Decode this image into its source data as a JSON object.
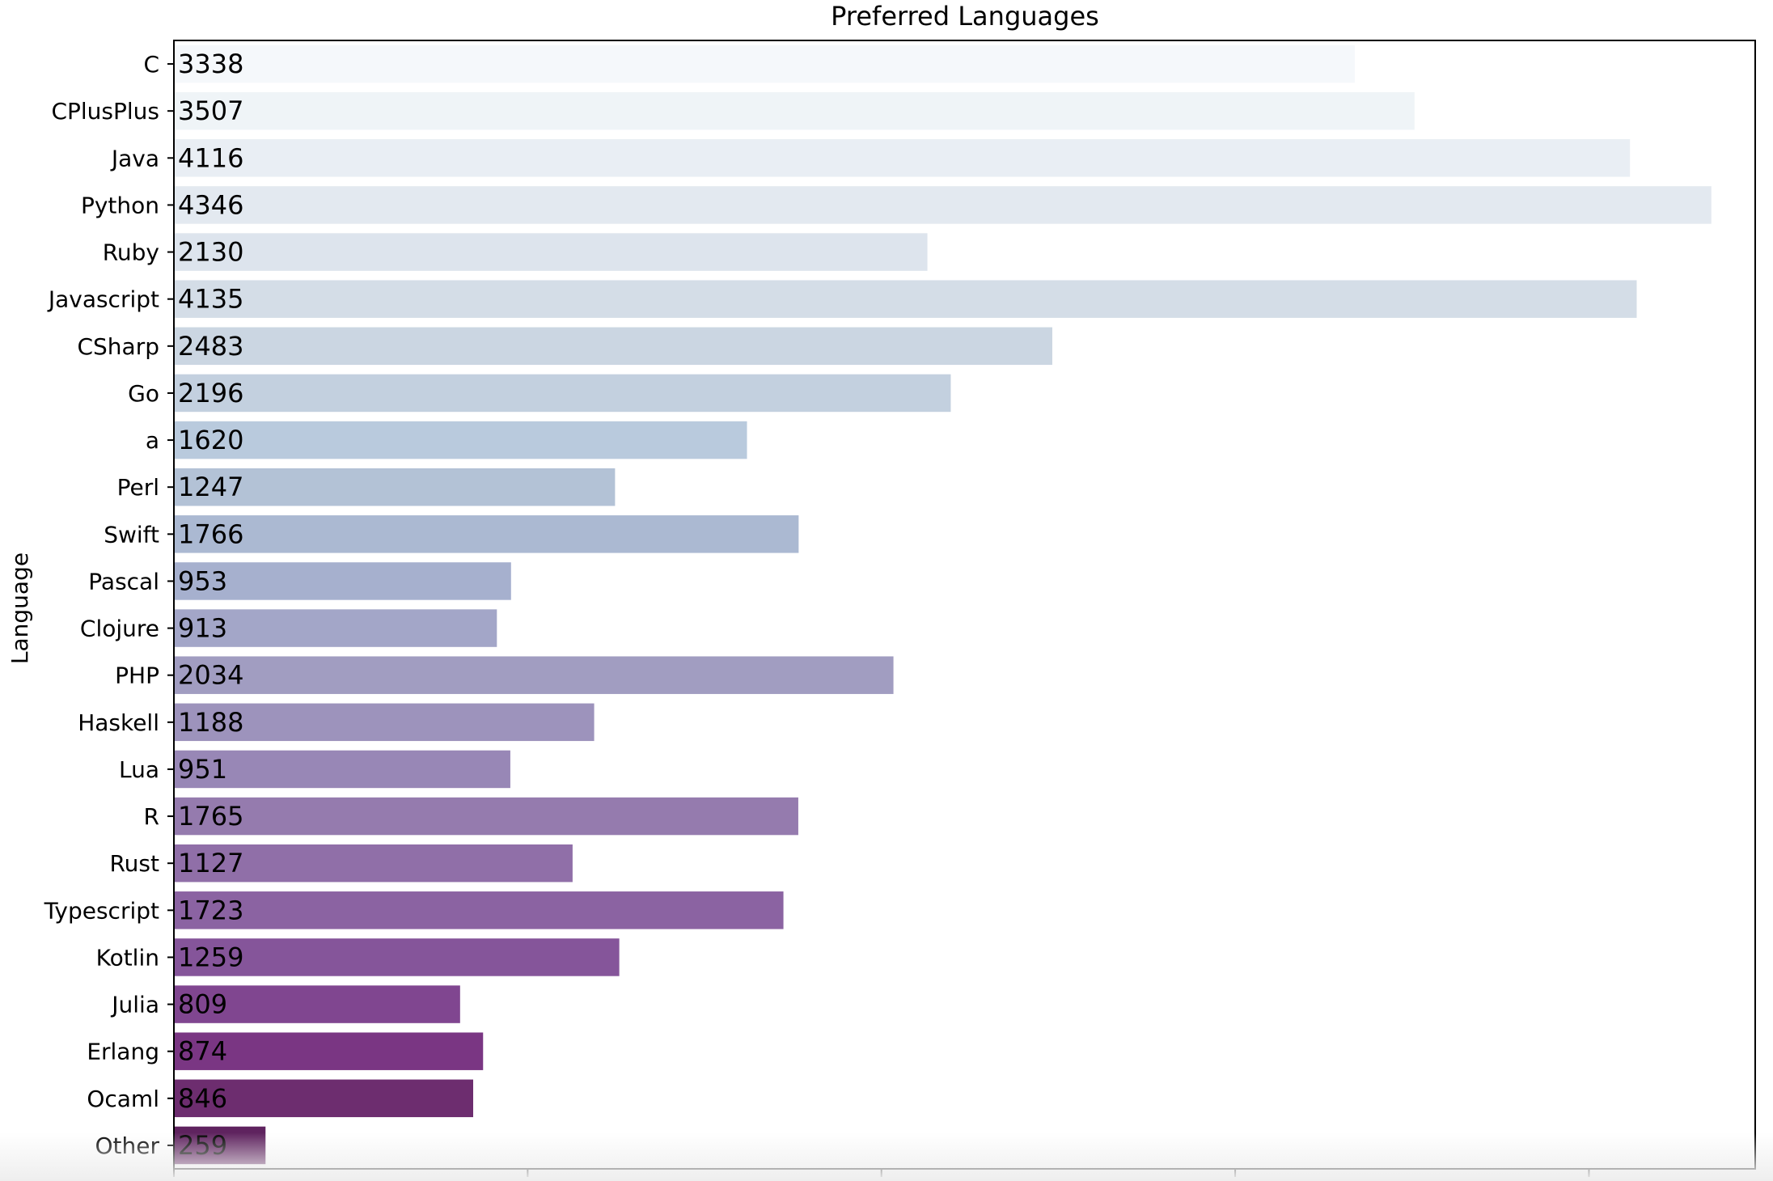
{
  "chart_data": {
    "type": "bar",
    "orientation": "horizontal",
    "title": "Preferred Languages",
    "xlabel": "",
    "ylabel": "Language",
    "xlim": [
      0,
      4470
    ],
    "x_ticks": [
      0,
      1000,
      2000,
      3000,
      4000
    ],
    "categories": [
      "C",
      "CPlusPlus",
      "Java",
      "Python",
      "Ruby",
      "Javascript",
      "CSharp",
      "Go",
      "a",
      "Perl",
      "Swift",
      "Pascal",
      "Clojure",
      "PHP",
      "Haskell",
      "Lua",
      "R",
      "Rust",
      "Typescript",
      "Kotlin",
      "Julia",
      "Erlang",
      "Ocaml",
      "Other"
    ],
    "values": [
      3338,
      3507,
      4116,
      4346,
      2130,
      4135,
      2483,
      2196,
      1620,
      1247,
      1766,
      953,
      913,
      2034,
      1188,
      951,
      1765,
      1127,
      1723,
      1259,
      809,
      874,
      846,
      259
    ],
    "colors": [
      "#f5f8fb",
      "#eff4f7",
      "#e9eef4",
      "#e3e9f0",
      "#dde4ed",
      "#d4dde7",
      "#cbd6e2",
      "#c3d0df",
      "#b9cadd",
      "#b3c2d6",
      "#abb9d2",
      "#a6b0ce",
      "#a3a6c8",
      "#a19dc1",
      "#9d93bc",
      "#9887b6",
      "#957bae",
      "#906fa8",
      "#8b63a2",
      "#85559a",
      "#804690",
      "#7a3683",
      "#6d2d6f",
      "#5f235f"
    ],
    "palette": "BuPu",
    "legend": "none",
    "grid": false
  }
}
